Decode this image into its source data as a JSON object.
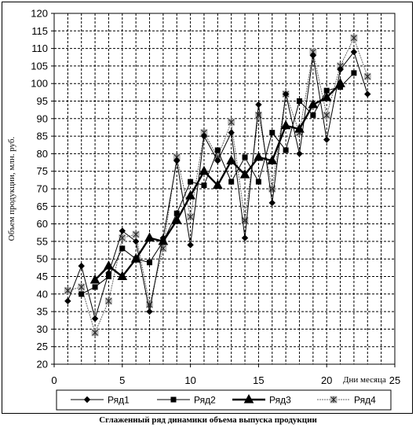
{
  "chart_data": {
    "type": "line",
    "title": "Сглаженный ряд динамики объема выпуска продукции",
    "xlabel": "Дни месяца",
    "ylabel": "Объем продукции, млн. руб.",
    "xlim": [
      0,
      25
    ],
    "ylim": [
      20,
      120
    ],
    "x_ticks": [
      0,
      5,
      10,
      15,
      20,
      25
    ],
    "y_ticks": [
      20,
      25,
      30,
      35,
      40,
      45,
      50,
      55,
      60,
      65,
      70,
      75,
      80,
      85,
      90,
      95,
      100,
      105,
      110,
      115,
      120
    ],
    "grid": true,
    "legend_position": "bottom",
    "series": [
      {
        "name": "Ряд1",
        "marker": "diamond",
        "color": "#000000",
        "x": [
          1,
          2,
          3,
          4,
          5,
          6,
          7,
          8,
          9,
          10,
          11,
          12,
          13,
          14,
          15,
          16,
          17,
          18,
          19,
          20,
          21,
          22,
          23
        ],
        "y": [
          38,
          48,
          33,
          46,
          58,
          55,
          35,
          56,
          78,
          54,
          85,
          78,
          86,
          56,
          94,
          66,
          97,
          80,
          108,
          84,
          104,
          109,
          97
        ]
      },
      {
        "name": "Ряд2",
        "marker": "square",
        "color": "#000000",
        "x": [
          2,
          3,
          4,
          5,
          6,
          7,
          8,
          9,
          10,
          11,
          12,
          13,
          14,
          15,
          16,
          17,
          18,
          19,
          20,
          21,
          22
        ],
        "y": [
          40,
          42,
          45,
          53,
          50,
          49,
          55,
          63,
          72,
          71,
          81,
          72,
          79,
          72,
          86,
          81,
          95,
          91,
          98,
          99,
          103
        ]
      },
      {
        "name": "Ряд3",
        "marker": "triangle",
        "color": "#000000",
        "x": [
          3,
          4,
          5,
          6,
          7,
          8,
          9,
          10,
          11,
          12,
          13,
          14,
          15,
          16,
          17,
          18,
          19,
          20,
          21
        ],
        "y": [
          44,
          48,
          45,
          50,
          56,
          55,
          61,
          68,
          75,
          71,
          78,
          74,
          79,
          78,
          88,
          87,
          94,
          96,
          100
        ]
      },
      {
        "name": "Ряд4",
        "marker": "star",
        "color": "#666666",
        "x": [
          1,
          2,
          3,
          4,
          5,
          6,
          7,
          8,
          9,
          10,
          11,
          12,
          13,
          14,
          15,
          16,
          17,
          18,
          19,
          20,
          21,
          22,
          23
        ],
        "y": [
          41,
          42,
          29,
          38,
          56,
          57,
          37,
          53,
          79,
          62,
          86,
          79,
          89,
          61,
          91,
          70,
          97,
          86,
          109,
          91,
          105,
          113,
          102
        ]
      }
    ]
  }
}
